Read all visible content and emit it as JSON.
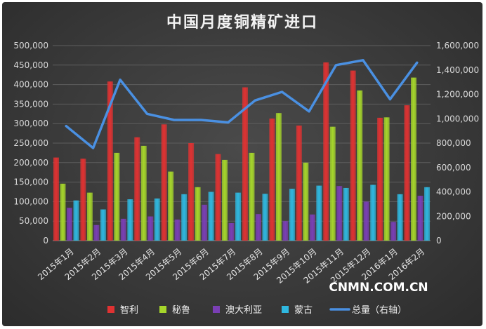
{
  "watermark": "CNMN.COM.CN",
  "chart_data": {
    "type": "bar",
    "title": "中国月度铜精矿进口",
    "categories": [
      "2015年1月",
      "2015年2月",
      "2015年3月",
      "2015年4月",
      "2015年5月",
      "2015年6月",
      "2015年7月",
      "2015年8月",
      "2015年9月",
      "2015年10月",
      "2015年11月",
      "2015年12月",
      "2016年1月",
      "2016年2月"
    ],
    "left_axis": {
      "ylim": [
        0,
        500000
      ],
      "ticks": [
        "500,000",
        "450,000",
        "400,000",
        "350,000",
        "300,000",
        "250,000",
        "200,000",
        "150,000",
        "100,000",
        "50,000",
        "0"
      ]
    },
    "right_axis": {
      "ylim": [
        0,
        1600000
      ],
      "ticks": [
        "1,600,000",
        "1,400,000",
        "1,200,000",
        "1,000,000",
        "800,000",
        "600,000",
        "400,000",
        "200,000",
        "0"
      ]
    },
    "series": [
      {
        "name": "智利",
        "type": "bar",
        "axis": "left",
        "color": "#e03232",
        "values": [
          213000,
          210000,
          408000,
          265000,
          298000,
          250000,
          222000,
          393000,
          313000,
          295000,
          457000,
          436000,
          315000,
          347000
        ]
      },
      {
        "name": "秘鲁",
        "type": "bar",
        "axis": "left",
        "color": "#a6d62b",
        "values": [
          146000,
          123000,
          225000,
          243000,
          177000,
          137000,
          207000,
          225000,
          327000,
          200000,
          292000,
          385000,
          316000,
          418000
        ]
      },
      {
        "name": "澳大利亚",
        "type": "bar",
        "axis": "left",
        "color": "#7a3fb5",
        "values": [
          84000,
          40000,
          56000,
          62000,
          54000,
          92000,
          45000,
          68000,
          50000,
          67000,
          140000,
          100000,
          48000,
          115000
        ]
      },
      {
        "name": "蒙古",
        "type": "bar",
        "axis": "left",
        "color": "#2fb8e0",
        "values": [
          103000,
          80000,
          106000,
          108000,
          119000,
          125000,
          123000,
          120000,
          133000,
          141000,
          135000,
          143000,
          119000,
          137000
        ]
      },
      {
        "name": "总量（右轴）",
        "type": "line",
        "axis": "right",
        "color": "#4a90e2",
        "values": [
          940000,
          760000,
          1320000,
          1040000,
          990000,
          990000,
          970000,
          1150000,
          1220000,
          1060000,
          1440000,
          1480000,
          1160000,
          1460000
        ]
      }
    ]
  }
}
